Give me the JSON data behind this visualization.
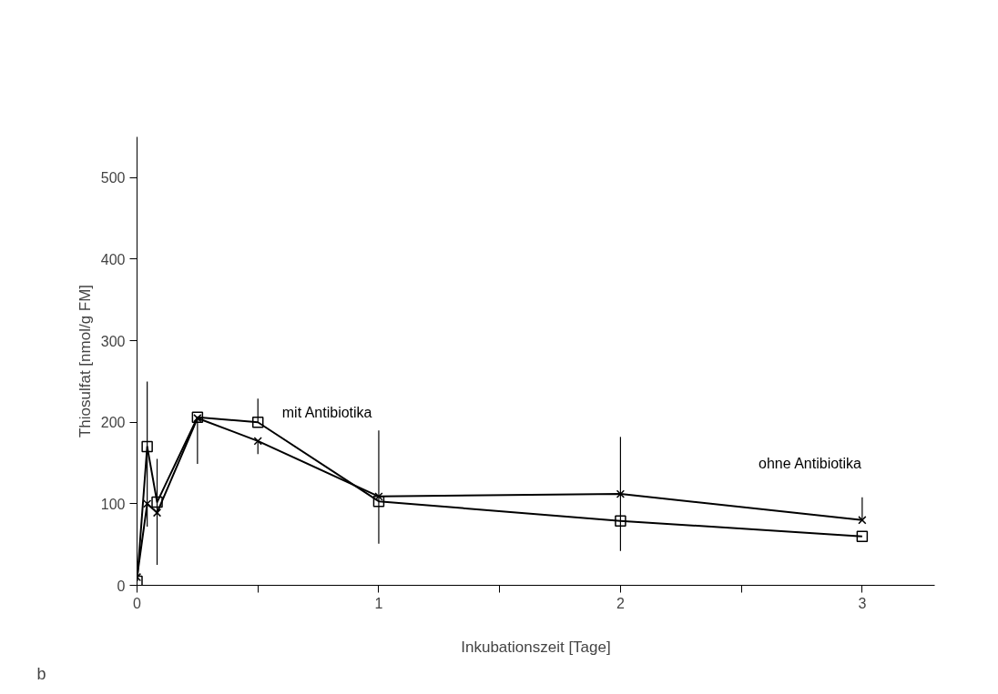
{
  "chart_data": {
    "type": "line",
    "xlabel": "Inkubationszeit [Tage]",
    "ylabel": "Thiosulfat [nmol/g FM]",
    "x": [
      0,
      0.042,
      0.083,
      0.25,
      0.5,
      1,
      2,
      3
    ],
    "series": [
      {
        "name": "mit Antibiotika",
        "color": "#000000",
        "marker": "square",
        "values": [
          5,
          170,
          102,
          206,
          200,
          103,
          79,
          60
        ],
        "errors": [
          null,
          [
            72,
            250
          ],
          [
            25,
            155
          ],
          [
            149,
            206
          ],
          [
            200,
            229
          ],
          [
            51,
            190
          ],
          [
            42,
            182
          ],
          null
        ]
      },
      {
        "name": "ohne Antibiotika",
        "color": "#000000",
        "marker": "cross",
        "values": [
          10,
          100,
          89,
          205,
          177,
          109,
          112,
          80
        ],
        "errors": [
          null,
          null,
          null,
          null,
          [
            161,
            177
          ],
          null,
          null,
          [
            80,
            108
          ]
        ]
      }
    ],
    "xlim": [
      0,
      3.3
    ],
    "ylim": [
      0,
      550
    ],
    "xticks": [
      0,
      {
        "value": 0.5,
        "label": null
      },
      1,
      {
        "value": 1.5,
        "label": null
      },
      2,
      {
        "value": 2.5,
        "label": null
      },
      3
    ],
    "yticks": [
      0,
      100,
      200,
      300,
      400,
      500
    ],
    "grid": false,
    "legend": false,
    "line_style": "solid",
    "annotations": [
      "b"
    ]
  }
}
